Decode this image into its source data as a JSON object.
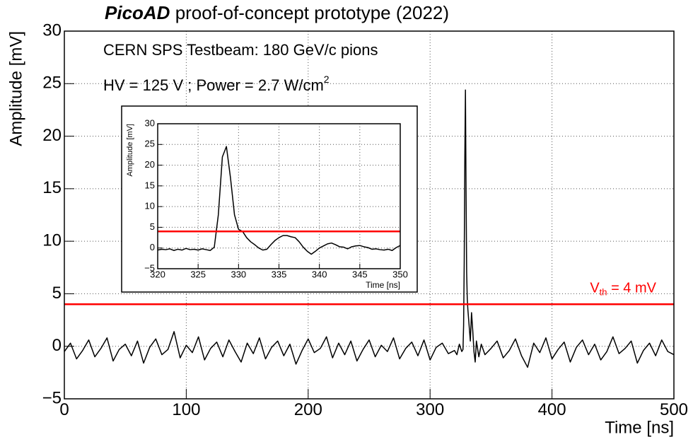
{
  "chart_data": [
    {
      "type": "line",
      "title": {
        "bold": "PicoAD",
        "rest": " proof-of-concept prototype (2022)"
      },
      "annotations": [
        "CERN SPS Testbeam: 180 GeV/c pions",
        {
          "text": "HV = 125 V ; Power = 2.7 W/cm",
          "sup": "2"
        }
      ],
      "x_label": "Time [ns]",
      "y_label": "Amplitude [mV]",
      "xlim": [
        0,
        500
      ],
      "ylim": [
        -5,
        30
      ],
      "xticks": [
        0,
        100,
        200,
        300,
        400,
        500
      ],
      "yticks": [
        {
          "value": -5,
          "label": "−5"
        },
        0,
        5,
        10,
        15,
        20,
        25,
        30
      ],
      "grid": true,
      "series": [
        {
          "color": "#000000",
          "x": [
            0,
            5,
            10,
            15,
            20,
            25,
            30,
            35,
            40,
            45,
            50,
            55,
            60,
            65,
            70,
            75,
            80,
            85,
            90,
            95,
            100,
            105,
            110,
            115,
            120,
            125,
            130,
            135,
            140,
            145,
            150,
            155,
            160,
            165,
            170,
            175,
            180,
            185,
            190,
            195,
            200,
            205,
            210,
            215,
            220,
            225,
            230,
            235,
            240,
            245,
            250,
            255,
            260,
            265,
            270,
            275,
            280,
            285,
            290,
            295,
            300,
            305,
            310,
            315,
            320,
            322,
            324,
            326,
            327,
            327.5,
            328,
            328.5,
            329,
            329.5,
            330,
            330.5,
            331,
            332,
            333,
            334,
            335,
            336,
            337,
            338,
            340,
            342,
            345,
            350,
            355,
            360,
            365,
            370,
            375,
            380,
            385,
            390,
            395,
            400,
            405,
            410,
            415,
            420,
            425,
            430,
            435,
            440,
            445,
            450,
            455,
            460,
            465,
            470,
            475,
            480,
            485,
            490,
            495,
            500
          ],
          "values": [
            -0.5,
            0.3,
            -1.2,
            -0.4,
            0.6,
            -1.0,
            -0.2,
            0.8,
            -1.4,
            -0.3,
            0.2,
            -0.9,
            0.5,
            -1.6,
            -0.1,
            0.7,
            -0.8,
            -0.3,
            1.4,
            -1.1,
            0.1,
            -0.6,
            0.9,
            -1.3,
            -0.2,
            0.4,
            -1.0,
            0.6,
            -0.5,
            -1.5,
            0.3,
            -0.7,
            0.8,
            -1.2,
            -0.1,
            0.5,
            -0.9,
            0.2,
            -1.7,
            -0.4,
            0.7,
            -0.6,
            -0.2,
            0.9,
            -1.1,
            0.3,
            -0.8,
            0.5,
            -1.4,
            -0.3,
            0.6,
            -1.0,
            0.1,
            -0.5,
            0.8,
            -1.2,
            -0.2,
            0.4,
            -0.9,
            0.6,
            -1.3,
            -0.1,
            0.3,
            -0.7,
            -0.4,
            -0.8,
            0.2,
            -0.5,
            -0.3,
            2,
            8,
            18,
            24.4,
            15,
            7,
            4.5,
            3.5,
            2,
            0.5,
            3.2,
            1.5,
            -0.5,
            -1.5,
            0.5,
            -1,
            0.2,
            -0.8,
            -0.2,
            0.5,
            -1.1,
            -0.4,
            0.7,
            -0.9,
            -2.0,
            0.3,
            -0.6,
            0.8,
            -1.2,
            -0.3,
            0.4,
            -1.5,
            -0.1,
            0.6,
            -0.8,
            0.2,
            -1.3,
            -0.5,
            0.9,
            -0.7,
            -0.2,
            0.5,
            -1.6,
            -0.4,
            0.3,
            -0.9,
            0.6,
            -0.5,
            -0.8
          ]
        }
      ],
      "threshold": {
        "value": 4,
        "color": "#ff0000",
        "label": {
          "main": "V",
          "sub": "th",
          "rest": " = 4 mV"
        }
      }
    },
    {
      "type": "line",
      "x_label": "Time [ns]",
      "y_label": "Amplitude [mV]",
      "xlim": [
        320,
        350
      ],
      "ylim": [
        -5,
        30
      ],
      "xticks": [
        320,
        325,
        330,
        335,
        340,
        345,
        350
      ],
      "yticks": [
        {
          "value": -5,
          "label": "−5"
        },
        0,
        5,
        10,
        15,
        20,
        25,
        30
      ],
      "grid": true,
      "series": [
        {
          "color": "#000000",
          "x": [
            320,
            320.5,
            321,
            321.5,
            322,
            322.5,
            323,
            323.5,
            324,
            324.5,
            325,
            325.5,
            326,
            326.5,
            327,
            327.5,
            328,
            328.5,
            329,
            329.5,
            330,
            330.5,
            331,
            331.5,
            332,
            332.5,
            333,
            333.5,
            334,
            334.5,
            335,
            335.5,
            336,
            336.5,
            337,
            337.5,
            338,
            338.5,
            339,
            339.5,
            340,
            340.5,
            341,
            341.5,
            342,
            342.5,
            343,
            343.5,
            344,
            344.5,
            345,
            345.5,
            346,
            346.5,
            347,
            347.5,
            348,
            348.5,
            349,
            349.5,
            350
          ],
          "values": [
            -0.5,
            -0.3,
            -0.4,
            -0.2,
            -0.6,
            -0.3,
            -0.5,
            -0.1,
            -0.4,
            -0.3,
            -0.5,
            -0.2,
            -0.4,
            -0.6,
            0.2,
            8,
            22,
            24.5,
            17,
            8,
            4.5,
            4,
            2.5,
            1.5,
            0.8,
            0,
            -0.5,
            -0.3,
            0.8,
            1.8,
            2.5,
            3,
            3,
            2.7,
            2.5,
            1.5,
            0.2,
            -0.8,
            -1.5,
            -0.8,
            0,
            0.5,
            1,
            1.2,
            0.8,
            0.3,
            0.2,
            -0.2,
            0.3,
            0.5,
            0.6,
            0.3,
            0.1,
            -0.3,
            -0.2,
            -0.4,
            -0.5,
            -0.3,
            -0.6,
            0.1,
            0.6
          ]
        }
      ],
      "threshold": {
        "value": 4,
        "color": "#ff0000"
      }
    }
  ]
}
